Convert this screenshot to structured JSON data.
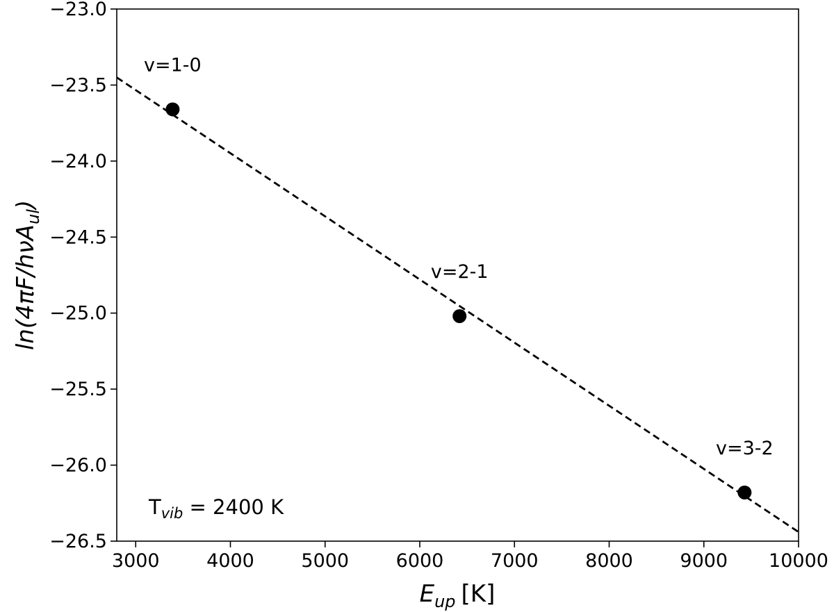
{
  "chart_data": {
    "type": "scatter",
    "xlabel": {
      "main": "E",
      "sub": "up",
      "unit": "[K]"
    },
    "ylabel": {
      "prefix": "ln(4πF/hνA",
      "sub": "ul",
      "suffix": ")"
    },
    "xlim": [
      2800,
      10000
    ],
    "ylim": [
      -26.5,
      -23.0
    ],
    "xticks": [
      3000,
      4000,
      5000,
      6000,
      7000,
      8000,
      9000,
      10000
    ],
    "xtick_labels": [
      "3000",
      "4000",
      "5000",
      "6000",
      "7000",
      "8000",
      "9000",
      "10000"
    ],
    "yticks": [
      -23.0,
      -23.5,
      -24.0,
      -24.5,
      -25.0,
      -25.5,
      -26.0,
      -26.5
    ],
    "ytick_labels": [
      "−23.0",
      "−23.5",
      "−24.0",
      "−24.5",
      "−25.0",
      "−25.5",
      "−26.0",
      "−26.5"
    ],
    "grid": false,
    "points": [
      {
        "x": 3390,
        "y": -23.66,
        "label": "v=1-0"
      },
      {
        "x": 6420,
        "y": -25.02,
        "label": "v=2-1"
      },
      {
        "x": 9430,
        "y": -26.18,
        "label": "v=3-2"
      }
    ],
    "fit_line": {
      "style": "dashed",
      "x": [
        2800,
        10000
      ],
      "y": [
        -23.45,
        -26.44
      ]
    },
    "annotation": {
      "main": "T",
      "sub": "vib",
      "rest": " = 2400 K"
    },
    "colors": {
      "points": "#000000",
      "line": "#000000"
    }
  }
}
